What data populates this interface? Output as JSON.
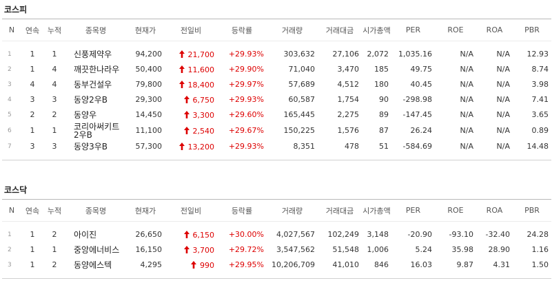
{
  "sections": [
    {
      "title": "코스피",
      "headers": [
        "N",
        "연속",
        "누적",
        "종목명",
        "현재가",
        "전일비",
        "등락률",
        "거래량",
        "거래대금",
        "시가총액",
        "PER",
        "ROE",
        "ROA",
        "PBR"
      ],
      "rows": [
        [
          "1",
          "1",
          "1",
          "신풍제약우",
          "94,200",
          "21,700",
          "+29.93%",
          "303,632",
          "27,106",
          "2,072",
          "1,035.16",
          "N/A",
          "N/A",
          "12.93"
        ],
        [
          "2",
          "1",
          "4",
          "깨끗한나라우",
          "50,400",
          "11,600",
          "+29.90%",
          "71,040",
          "3,470",
          "185",
          "49.75",
          "N/A",
          "N/A",
          "8.74"
        ],
        [
          "3",
          "4",
          "4",
          "동부건설우",
          "79,800",
          "18,400",
          "+29.97%",
          "57,689",
          "4,512",
          "180",
          "40.45",
          "N/A",
          "N/A",
          "3.98"
        ],
        [
          "4",
          "3",
          "3",
          "동양2우B",
          "29,300",
          "6,750",
          "+29.93%",
          "60,587",
          "1,754",
          "90",
          "-298.98",
          "N/A",
          "N/A",
          "7.41"
        ],
        [
          "5",
          "2",
          "2",
          "동양우",
          "14,450",
          "3,300",
          "+29.60%",
          "165,445",
          "2,275",
          "89",
          "-147.45",
          "N/A",
          "N/A",
          "3.65"
        ],
        [
          "6",
          "1",
          "1",
          "코리아써키트2우B",
          "11,100",
          "2,540",
          "+29.67%",
          "150,225",
          "1,576",
          "87",
          "26.24",
          "N/A",
          "N/A",
          "0.89"
        ],
        [
          "7",
          "3",
          "3",
          "동양3우B",
          "57,300",
          "13,200",
          "+29.93%",
          "8,351",
          "478",
          "51",
          "-584.69",
          "N/A",
          "N/A",
          "14.48"
        ]
      ]
    },
    {
      "title": "코스닥",
      "headers": [
        "N",
        "연속",
        "누적",
        "종목명",
        "현재가",
        "전일비",
        "등락률",
        "거래량",
        "거래대금",
        "시가총액",
        "PER",
        "ROE",
        "ROA",
        "PBR"
      ],
      "rows": [
        [
          "1",
          "1",
          "2",
          "아이진",
          "26,650",
          "6,150",
          "+30.00%",
          "4,027,567",
          "102,249",
          "3,148",
          "-20.90",
          "-93.10",
          "-32.40",
          "24.28"
        ],
        [
          "2",
          "1",
          "1",
          "중앙에너비스",
          "16,150",
          "3,700",
          "+29.72%",
          "3,547,562",
          "51,548",
          "1,006",
          "5.24",
          "35.98",
          "28.90",
          "1.16"
        ],
        [
          "3",
          "1",
          "2",
          "동양에스텍",
          "4,295",
          "990",
          "+29.95%",
          "10,206,709",
          "41,010",
          "846",
          "16.03",
          "9.87",
          "4.31",
          "1.50"
        ]
      ]
    }
  ]
}
